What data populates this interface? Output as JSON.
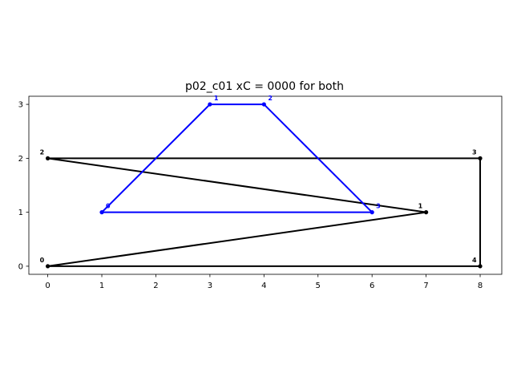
{
  "chart_data": {
    "type": "line",
    "title": "p02_c01 xC = 0000 for both",
    "xlabel": "",
    "ylabel": "",
    "xlim": [
      -0.35,
      8.4
    ],
    "ylim": [
      -0.15,
      3.15
    ],
    "xticks": [
      0,
      1,
      2,
      3,
      4,
      5,
      6,
      7,
      8
    ],
    "yticks": [
      0,
      1,
      2,
      3
    ],
    "grid": false,
    "series": [
      {
        "color": "#000000",
        "closed": true,
        "points": [
          {
            "label": "0",
            "x": 0,
            "y": 0
          },
          {
            "label": "1",
            "x": 7,
            "y": 1
          },
          {
            "label": "2",
            "x": 0,
            "y": 2
          },
          {
            "label": "3",
            "x": 8,
            "y": 2
          },
          {
            "label": "4",
            "x": 8,
            "y": 0
          }
        ]
      },
      {
        "color": "#0000ff",
        "closed": true,
        "points": [
          {
            "label": "0",
            "x": 1,
            "y": 1
          },
          {
            "label": "1",
            "x": 3,
            "y": 3
          },
          {
            "label": "2",
            "x": 4,
            "y": 3
          },
          {
            "label": "3",
            "x": 6,
            "y": 1
          }
        ]
      }
    ]
  }
}
